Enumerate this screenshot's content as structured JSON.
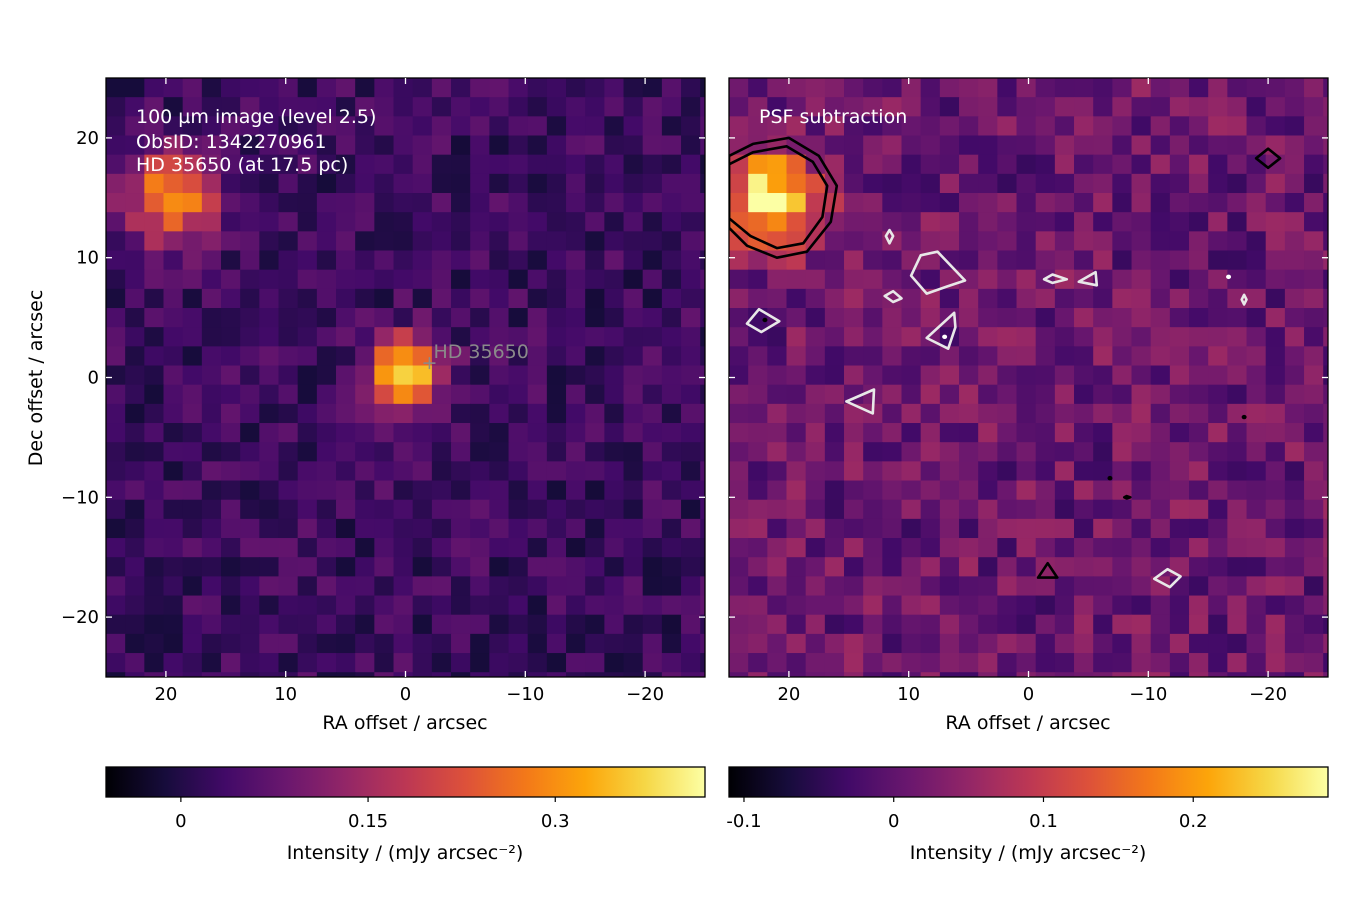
{
  "chart_data": [
    {
      "type": "heatmap",
      "panel": "left",
      "annotation_lines": [
        "100 µm image (level 2.5)",
        "ObsID: 1342270961",
        "HD 35650 (at 17.5 pc)"
      ],
      "xlabel": "RA offset / arcsec",
      "ylabel": "Dec offset / arcsec",
      "xlim": [
        25,
        -25
      ],
      "ylim": [
        -25,
        25
      ],
      "x_ticks": [
        20,
        10,
        0,
        -10,
        -20
      ],
      "x_tick_labels": [
        "20",
        "10",
        "0",
        "−10",
        "−20"
      ],
      "y_ticks": [
        20,
        10,
        0,
        -10,
        -20
      ],
      "y_tick_labels": [
        "20",
        "10",
        "0",
        "−10",
        "−20"
      ],
      "colormap": "inferno",
      "pixel_size_arcsec": 1.6,
      "background_level": 0.03,
      "sources": [
        {
          "ra": 19.5,
          "dec": 15.0,
          "peak": 0.28,
          "sigma": 2.6
        },
        {
          "ra": 0.0,
          "dec": 0.5,
          "peak": 0.36,
          "sigma": 2.0
        }
      ],
      "star_marker": {
        "ra": -2.0,
        "dec": 1.2,
        "label": "HD  35650"
      },
      "colorbar": {
        "range": [
          -0.06,
          0.42
        ],
        "ticks": [
          0,
          0.15,
          0.3
        ],
        "tick_labels": [
          "0",
          "0.15",
          "0.3"
        ],
        "label": "Intensity / (mJy arcsec⁻²)"
      }
    },
    {
      "type": "heatmap",
      "panel": "right",
      "annotation_lines": [
        "PSF subtraction"
      ],
      "xlabel": "RA offset / arcsec",
      "xlim": [
        25,
        -25
      ],
      "ylim": [
        -25,
        25
      ],
      "x_ticks": [
        20,
        10,
        0,
        -10,
        -20
      ],
      "x_tick_labels": [
        "20",
        "10",
        "0",
        "−10",
        "−20"
      ],
      "colormap": "inferno",
      "pixel_size_arcsec": 1.6,
      "background_level": 0.01,
      "sources": [
        {
          "ra": 21.5,
          "dec": 15.0,
          "peak": 0.27,
          "sigma": 2.7
        }
      ],
      "contours": [
        {
          "color": "black",
          "level": "positive",
          "points": [
            [
              25,
              12.5
            ],
            [
              23.5,
              11.0
            ],
            [
              21,
              10.0
            ],
            [
              18.5,
              10.5
            ],
            [
              16.5,
              13.0
            ],
            [
              16,
              16.0
            ],
            [
              17.5,
              18.5
            ],
            [
              20,
              20.0
            ],
            [
              23,
              19.5
            ],
            [
              25,
              18.5
            ]
          ]
        },
        {
          "color": "black",
          "level": "positive",
          "points": [
            [
              25,
              13.3
            ],
            [
              23.2,
              11.8
            ],
            [
              21,
              10.8
            ],
            [
              18.8,
              11.2
            ],
            [
              17.2,
              13.4
            ],
            [
              16.8,
              16.0
            ],
            [
              18.0,
              18.0
            ],
            [
              20.2,
              19.3
            ],
            [
              23.0,
              18.8
            ],
            [
              25,
              17.8
            ]
          ]
        },
        {
          "color": "white",
          "level": "negative",
          "points": [
            [
              9.8,
              8.5
            ],
            [
              9.0,
              10.2
            ],
            [
              7.6,
              10.5
            ],
            [
              5.3,
              8.1
            ],
            [
              6.8,
              7.6
            ],
            [
              8.5,
              7.0
            ]
          ]
        },
        {
          "color": "white",
          "level": "negative",
          "points": [
            [
              11.6,
              11.2
            ],
            [
              11.3,
              11.8
            ],
            [
              11.6,
              12.3
            ],
            [
              11.9,
              11.8
            ]
          ]
        },
        {
          "color": "white",
          "level": "negative",
          "points": [
            [
              12.0,
              6.8
            ],
            [
              11.3,
              6.3
            ],
            [
              10.6,
              6.6
            ],
            [
              11.3,
              7.2
            ]
          ]
        },
        {
          "color": "white",
          "level": "negative",
          "points": [
            [
              23.5,
              4.5
            ],
            [
              22.3,
              3.8
            ],
            [
              20.8,
              4.7
            ],
            [
              22.5,
              5.7
            ]
          ]
        },
        {
          "color": "white",
          "level": "negative",
          "points": [
            [
              8.5,
              3.3
            ],
            [
              6.7,
              2.4
            ],
            [
              6.1,
              4.2
            ],
            [
              6.2,
              5.4
            ]
          ]
        },
        {
          "color": "white",
          "level": "negative",
          "points": [
            [
              15.2,
              -2.0
            ],
            [
              13.0,
              -3.0
            ],
            [
              12.9,
              -1.0
            ]
          ]
        },
        {
          "color": "white",
          "level": "negative",
          "points": [
            [
              -1.3,
              8.2
            ],
            [
              -2.0,
              8.6
            ],
            [
              -3.2,
              8.2
            ],
            [
              -2.0,
              7.9
            ]
          ]
        },
        {
          "color": "white",
          "level": "negative",
          "points": [
            [
              -4.2,
              8.0
            ],
            [
              -5.6,
              8.8
            ],
            [
              -5.7,
              7.7
            ]
          ]
        },
        {
          "color": "white",
          "level": "negative",
          "points": [
            [
              -10.5,
              -16.8
            ],
            [
              -11.8,
              -17.5
            ],
            [
              -12.7,
              -16.6
            ],
            [
              -11.6,
              -16.0
            ]
          ]
        },
        {
          "color": "white",
          "level": "negative",
          "points": [
            [
              -18.0,
              6.9
            ],
            [
              -18.2,
              6.5
            ],
            [
              -18.0,
              6.1
            ],
            [
              -17.8,
              6.5
            ]
          ]
        },
        {
          "color": "black",
          "level": "positive",
          "points": [
            [
              -19.0,
              18.3
            ],
            [
              -20.0,
              17.5
            ],
            [
              -21.0,
              18.3
            ],
            [
              -20.0,
              19.1
            ]
          ]
        },
        {
          "color": "black",
          "level": "positive",
          "points": [
            [
              -0.8,
              -16.7
            ],
            [
              -1.6,
              -15.5
            ],
            [
              -2.4,
              -16.7
            ]
          ]
        },
        {
          "color": "black",
          "level": "positive",
          "points": [
            [
              -8.0,
              -10.0
            ],
            [
              -8.2,
              -9.9
            ],
            [
              -8.5,
              -10.0
            ],
            [
              -8.2,
              -10.1
            ]
          ]
        }
      ],
      "markers": [
        {
          "ra": 7.0,
          "dec": 3.4,
          "color": "white"
        },
        {
          "ra": -6.8,
          "dec": -8.4,
          "color": "black"
        },
        {
          "ra": -18.0,
          "dec": -3.3,
          "color": "black"
        },
        {
          "ra": 22.0,
          "dec": 4.8,
          "color": "black"
        },
        {
          "ra": -16.7,
          "dec": 8.4,
          "color": "white"
        }
      ],
      "colorbar": {
        "range": [
          -0.11,
          0.29
        ],
        "ticks": [
          -0.1,
          0,
          0.1,
          0.2
        ],
        "tick_labels": [
          "-0.1",
          "0",
          "0.1",
          "0.2"
        ],
        "label": "Intensity / (mJy arcsec⁻²)"
      }
    }
  ]
}
